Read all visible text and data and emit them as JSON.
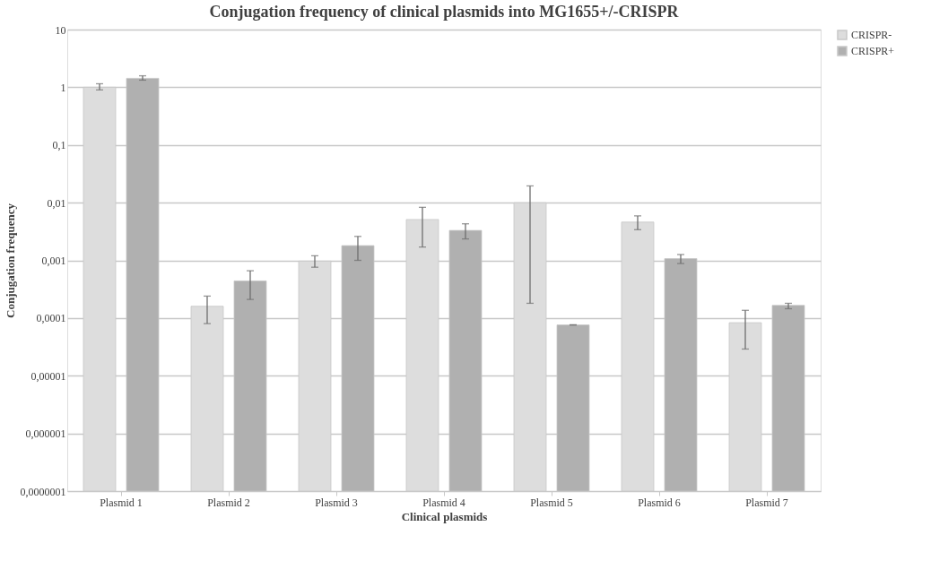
{
  "chart_data": {
    "type": "bar",
    "title": "Conjugation frequency of clinical plasmids into MG1655+/-CRISPR",
    "xlabel": "Clinical plasmids",
    "ylabel": "Conjugation frequency",
    "categories": [
      "Plasmid 1",
      "Plasmid 2",
      "Plasmid 3",
      "Plasmid 4",
      "Plasmid 5",
      "Plasmid 6",
      "Plasmid 7"
    ],
    "series": [
      {
        "name": "CRISPR-",
        "color": "#dddddd",
        "values": [
          1.0,
          0.00016,
          0.00097,
          0.0051,
          0.01,
          0.0046,
          8.3e-05
        ],
        "errors": [
          [
            0.9,
            1.15
          ],
          [
            8e-05,
            0.00024
          ],
          [
            0.00076,
            0.0012
          ],
          [
            0.0017,
            0.0083
          ],
          [
            0.00018,
            0.0195
          ],
          [
            0.0034,
            0.0059
          ],
          [
            2.9e-05,
            0.000136
          ]
        ]
      },
      {
        "name": "CRISPR+",
        "color": "#b0b0b0",
        "values": [
          1.43,
          0.00044,
          0.0018,
          0.0033,
          7.6e-05,
          0.00107,
          0.000166
        ],
        "errors": [
          [
            1.33,
            1.58
          ],
          [
            0.00021,
            0.00066
          ],
          [
            0.001,
            0.0026
          ],
          [
            0.00235,
            0.0043
          ],
          [
            7.55e-05,
            7.65e-05
          ],
          [
            0.00088,
            0.00126
          ],
          [
            0.000145,
            0.00018
          ]
        ]
      }
    ],
    "log": "y",
    "ylim": [
      1e-07,
      10
    ],
    "yticks": [
      {
        "value": 1e-07,
        "label": "0,0000001"
      },
      {
        "value": 1e-06,
        "label": "0,000001"
      },
      {
        "value": 1e-05,
        "label": "0,00001"
      },
      {
        "value": 0.0001,
        "label": "0,0001"
      },
      {
        "value": 0.001,
        "label": "0,001"
      },
      {
        "value": 0.01,
        "label": "0,01"
      },
      {
        "value": 0.1,
        "label": "0,1"
      },
      1,
      10
    ],
    "grid": "y",
    "legend": "right"
  }
}
